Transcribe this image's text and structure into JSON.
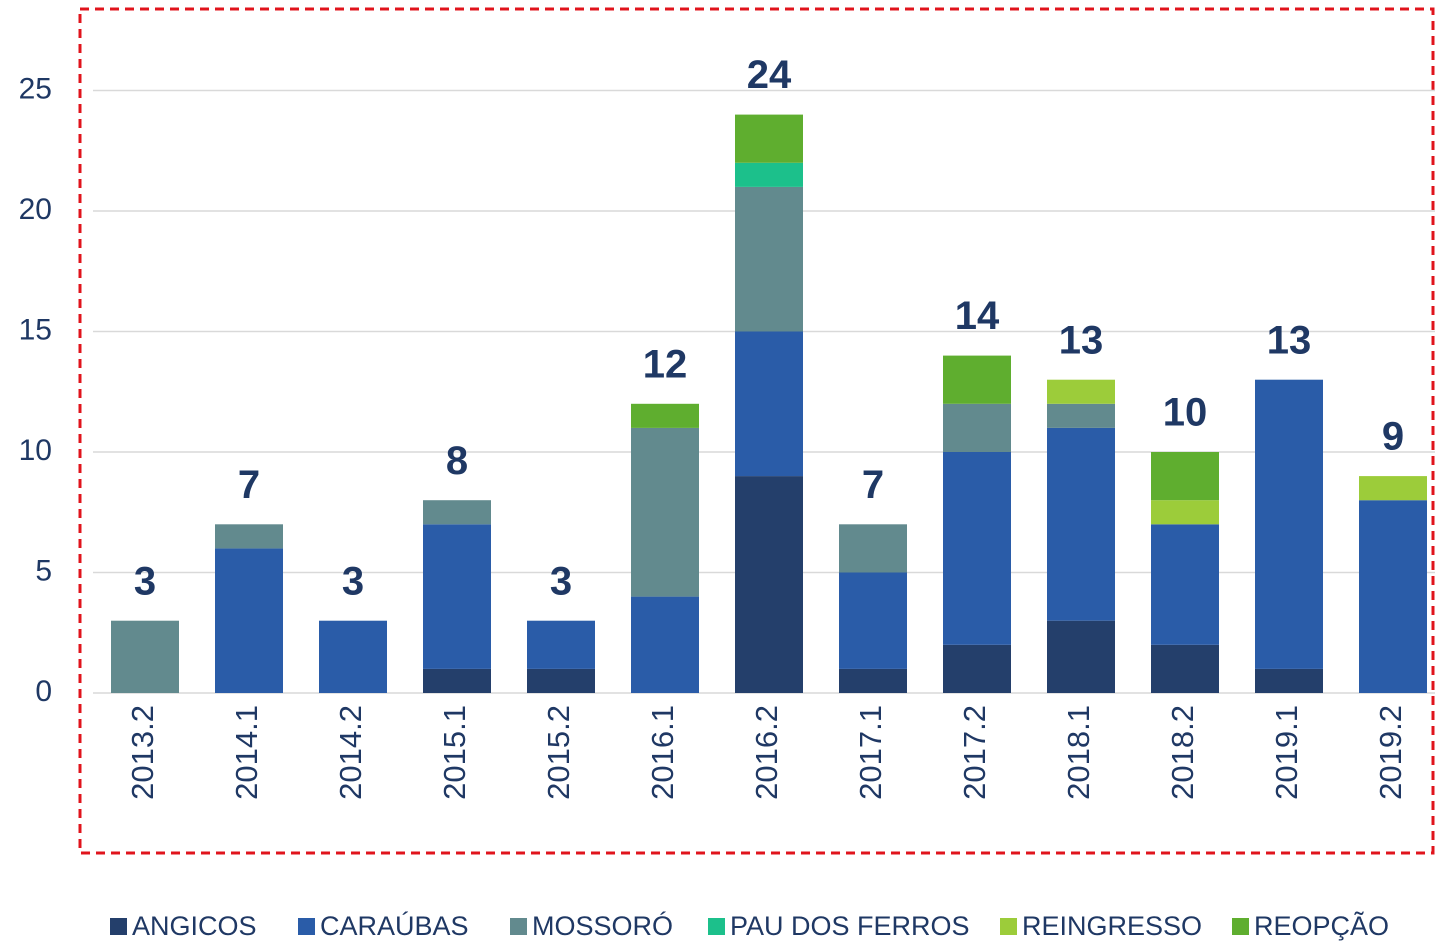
{
  "chart_data": {
    "type": "stacked_bar",
    "categories": [
      "2013.2",
      "2014.1",
      "2014.2",
      "2015.1",
      "2015.2",
      "2016.1",
      "2016.2",
      "2017.1",
      "2017.2",
      "2018.1",
      "2018.2",
      "2019.1",
      "2019.2"
    ],
    "series": [
      {
        "name": "ANGICOS",
        "color": "#243f6b",
        "values": [
          0,
          0,
          0,
          1,
          1,
          0,
          9,
          1,
          2,
          3,
          2,
          1,
          0
        ]
      },
      {
        "name": "CARAÚBAS",
        "color": "#2a5ca8",
        "values": [
          0,
          6,
          3,
          6,
          2,
          4,
          6,
          4,
          8,
          8,
          5,
          12,
          8
        ]
      },
      {
        "name": "MOSSORÓ",
        "color": "#628a8e",
        "values": [
          3,
          1,
          0,
          1,
          0,
          7,
          6,
          2,
          2,
          1,
          0,
          0,
          0
        ]
      },
      {
        "name": "PAU DOS FERROS",
        "color": "#1cc08b",
        "values": [
          0,
          0,
          0,
          0,
          0,
          0,
          1,
          0,
          0,
          0,
          0,
          0,
          0
        ]
      },
      {
        "name": "REINGRESSO",
        "color": "#9ccc3a",
        "values": [
          0,
          0,
          0,
          0,
          0,
          0,
          0,
          0,
          0,
          1,
          1,
          0,
          1
        ]
      },
      {
        "name": "REOPÇÃO",
        "color": "#5fae2f",
        "values": [
          0,
          0,
          0,
          0,
          0,
          1,
          2,
          0,
          2,
          0,
          2,
          0,
          0
        ]
      }
    ],
    "totals": [
      3,
      7,
      3,
      8,
      3,
      12,
      24,
      7,
      14,
      13,
      10,
      13,
      9
    ],
    "ylim": [
      0,
      28
    ],
    "yticks": [
      0,
      5,
      10,
      15,
      20,
      25
    ],
    "grid": true,
    "legend": "bottom"
  }
}
